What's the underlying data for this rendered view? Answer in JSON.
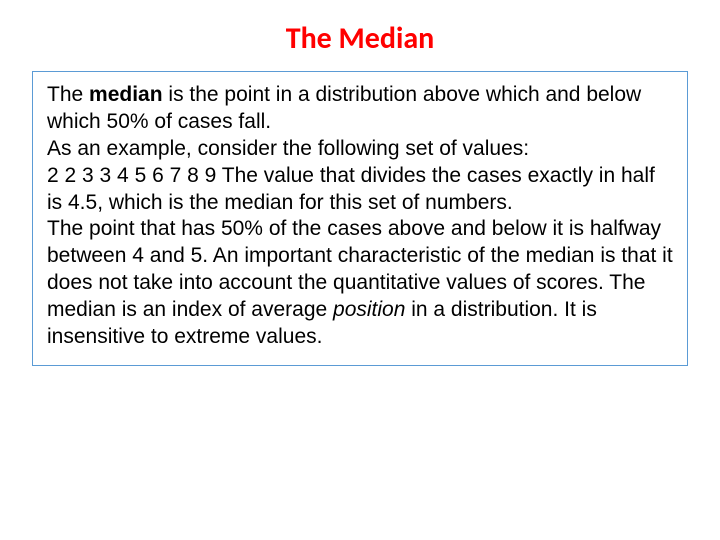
{
  "title": "The Median",
  "title_color": "#ff0000",
  "title_fontsize": 30,
  "title_weight": "bold",
  "box_border_color": "#5b9bd5",
  "body_fontsize": 21,
  "body_color": "#000000",
  "text": {
    "t1": "The ",
    "t2_bold": "median",
    "t3": " is the point in a distribution above which and below which 50% of cases fall.",
    "t4": "As an example, consider the following set of values:",
    "t5": "2 2 3 3 4 5 6 7 8 9 The value that divides the cases exactly in half is 4.5, which is the median for this set of numbers.",
    "t6": "The point that has 50% of the cases above and below it is halfway between 4 and 5. An important characteristic of the median is that it does not take into account the quantitative values of scores. The median is an index of average ",
    "t7_italic": "position",
    "t8": " in a distribution. It is insensitive to extreme values."
  }
}
